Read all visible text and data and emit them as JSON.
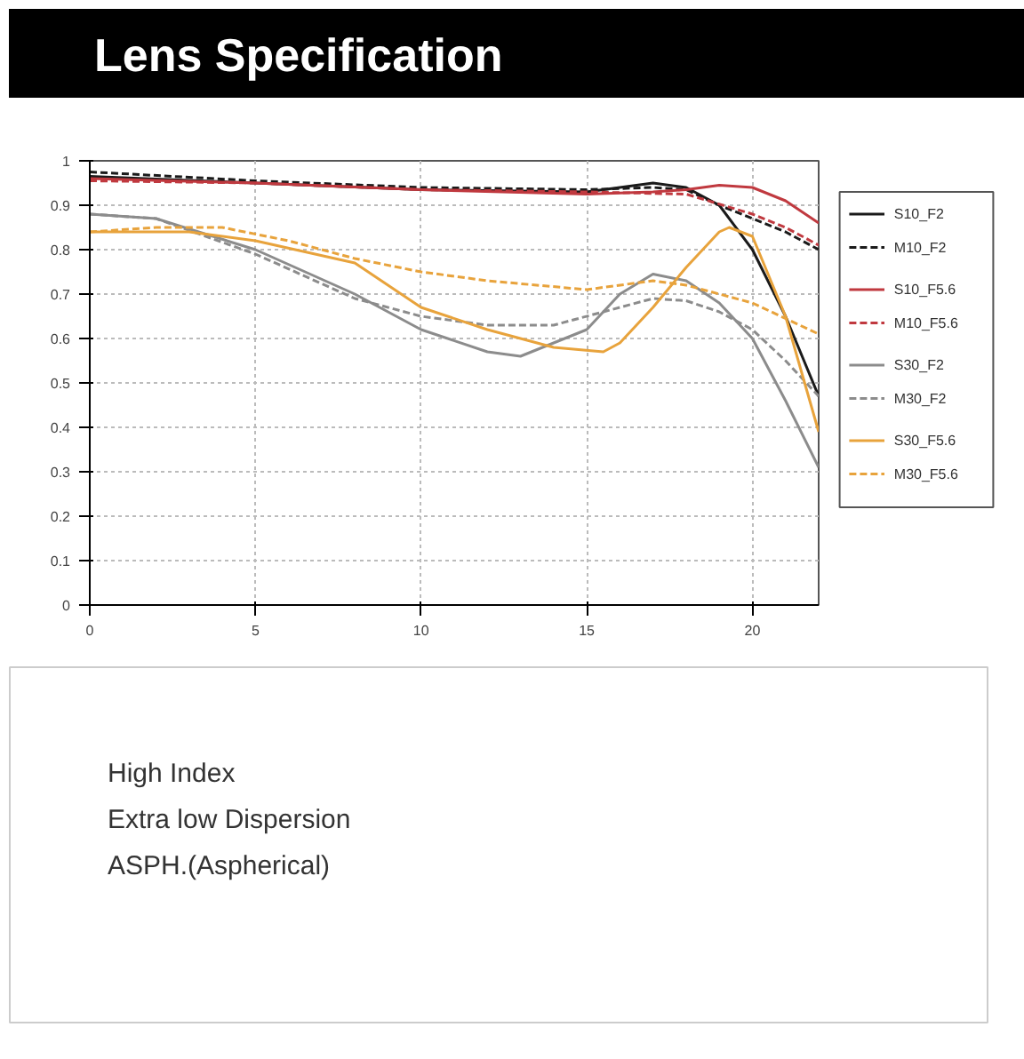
{
  "chart_data": {
    "type": "line",
    "title": "Lens Specification",
    "xlim": [
      0,
      22
    ],
    "xticks": [
      0,
      5,
      10,
      15,
      20
    ],
    "ylim": [
      0,
      1
    ],
    "yticks": [
      {
        "value": 0,
        "label": "0"
      },
      0.1,
      0.2,
      0.3,
      0.4,
      0.5,
      0.6,
      0.7,
      0.8,
      0.9,
      {
        "value": 1,
        "label": "1"
      }
    ],
    "grid": true,
    "legend": "right",
    "marker": "none",
    "series": [
      {
        "name": "S10_F2",
        "color": "#1a1a1a",
        "line_style": "solid",
        "x": [
          0,
          5,
          10,
          15,
          17,
          18,
          19,
          20,
          21,
          22
        ],
        "values": [
          0.965,
          0.95,
          0.935,
          0.93,
          0.95,
          0.94,
          0.9,
          0.8,
          0.65,
          0.47
        ]
      },
      {
        "name": "M10_F2",
        "color": "#1a1a1a",
        "line_style": "dashed",
        "x": [
          0,
          5,
          10,
          15,
          17,
          18,
          19,
          20,
          21,
          22
        ],
        "values": [
          0.975,
          0.955,
          0.94,
          0.935,
          0.94,
          0.935,
          0.9,
          0.87,
          0.84,
          0.8
        ]
      },
      {
        "name": "S10_F5.6",
        "color": "#c0393f",
        "line_style": "solid",
        "x": [
          0,
          5,
          10,
          15,
          17,
          18,
          19,
          20,
          21,
          22
        ],
        "values": [
          0.96,
          0.95,
          0.935,
          0.925,
          0.93,
          0.935,
          0.945,
          0.94,
          0.91,
          0.86
        ]
      },
      {
        "name": "M10_F5.6",
        "color": "#c0393f",
        "line_style": "dashed",
        "x": [
          0,
          5,
          10,
          15,
          18,
          20,
          21,
          22
        ],
        "values": [
          0.955,
          0.95,
          0.935,
          0.93,
          0.925,
          0.88,
          0.85,
          0.81
        ]
      },
      {
        "name": "S30_F2",
        "color": "#8c8c8c",
        "line_style": "solid",
        "x": [
          0,
          2,
          5,
          8,
          10,
          12,
          13,
          15,
          16,
          17,
          18,
          19,
          20,
          21,
          22
        ],
        "values": [
          0.88,
          0.87,
          0.8,
          0.7,
          0.62,
          0.57,
          0.56,
          0.62,
          0.7,
          0.745,
          0.73,
          0.68,
          0.6,
          0.46,
          0.31
        ]
      },
      {
        "name": "M30_F2",
        "color": "#8c8c8c",
        "line_style": "dashed",
        "x": [
          0,
          2,
          5,
          8,
          10,
          12,
          14,
          16,
          17,
          18,
          19,
          20,
          21,
          22
        ],
        "values": [
          0.88,
          0.87,
          0.79,
          0.69,
          0.65,
          0.63,
          0.63,
          0.67,
          0.69,
          0.685,
          0.66,
          0.62,
          0.55,
          0.47
        ]
      },
      {
        "name": "S30_F5.6",
        "color": "#e8a33c",
        "line_style": "solid",
        "x": [
          0,
          3,
          5,
          8,
          10,
          12,
          14,
          15.5,
          16,
          17,
          18,
          19,
          19.3,
          20,
          21,
          22
        ],
        "values": [
          0.84,
          0.84,
          0.82,
          0.77,
          0.67,
          0.62,
          0.58,
          0.57,
          0.59,
          0.67,
          0.76,
          0.84,
          0.85,
          0.83,
          0.65,
          0.39
        ]
      },
      {
        "name": "M30_F5.6",
        "color": "#e8a33c",
        "line_style": "dashed",
        "x": [
          0,
          2,
          4,
          6,
          8,
          10,
          12,
          15,
          17,
          18,
          20,
          22
        ],
        "values": [
          0.84,
          0.85,
          0.85,
          0.82,
          0.78,
          0.75,
          0.73,
          0.71,
          0.73,
          0.72,
          0.68,
          0.61
        ]
      }
    ],
    "annotations": [
      "High Index",
      "Extra low Dispersion",
      "ASPH.(Aspherical)"
    ]
  }
}
